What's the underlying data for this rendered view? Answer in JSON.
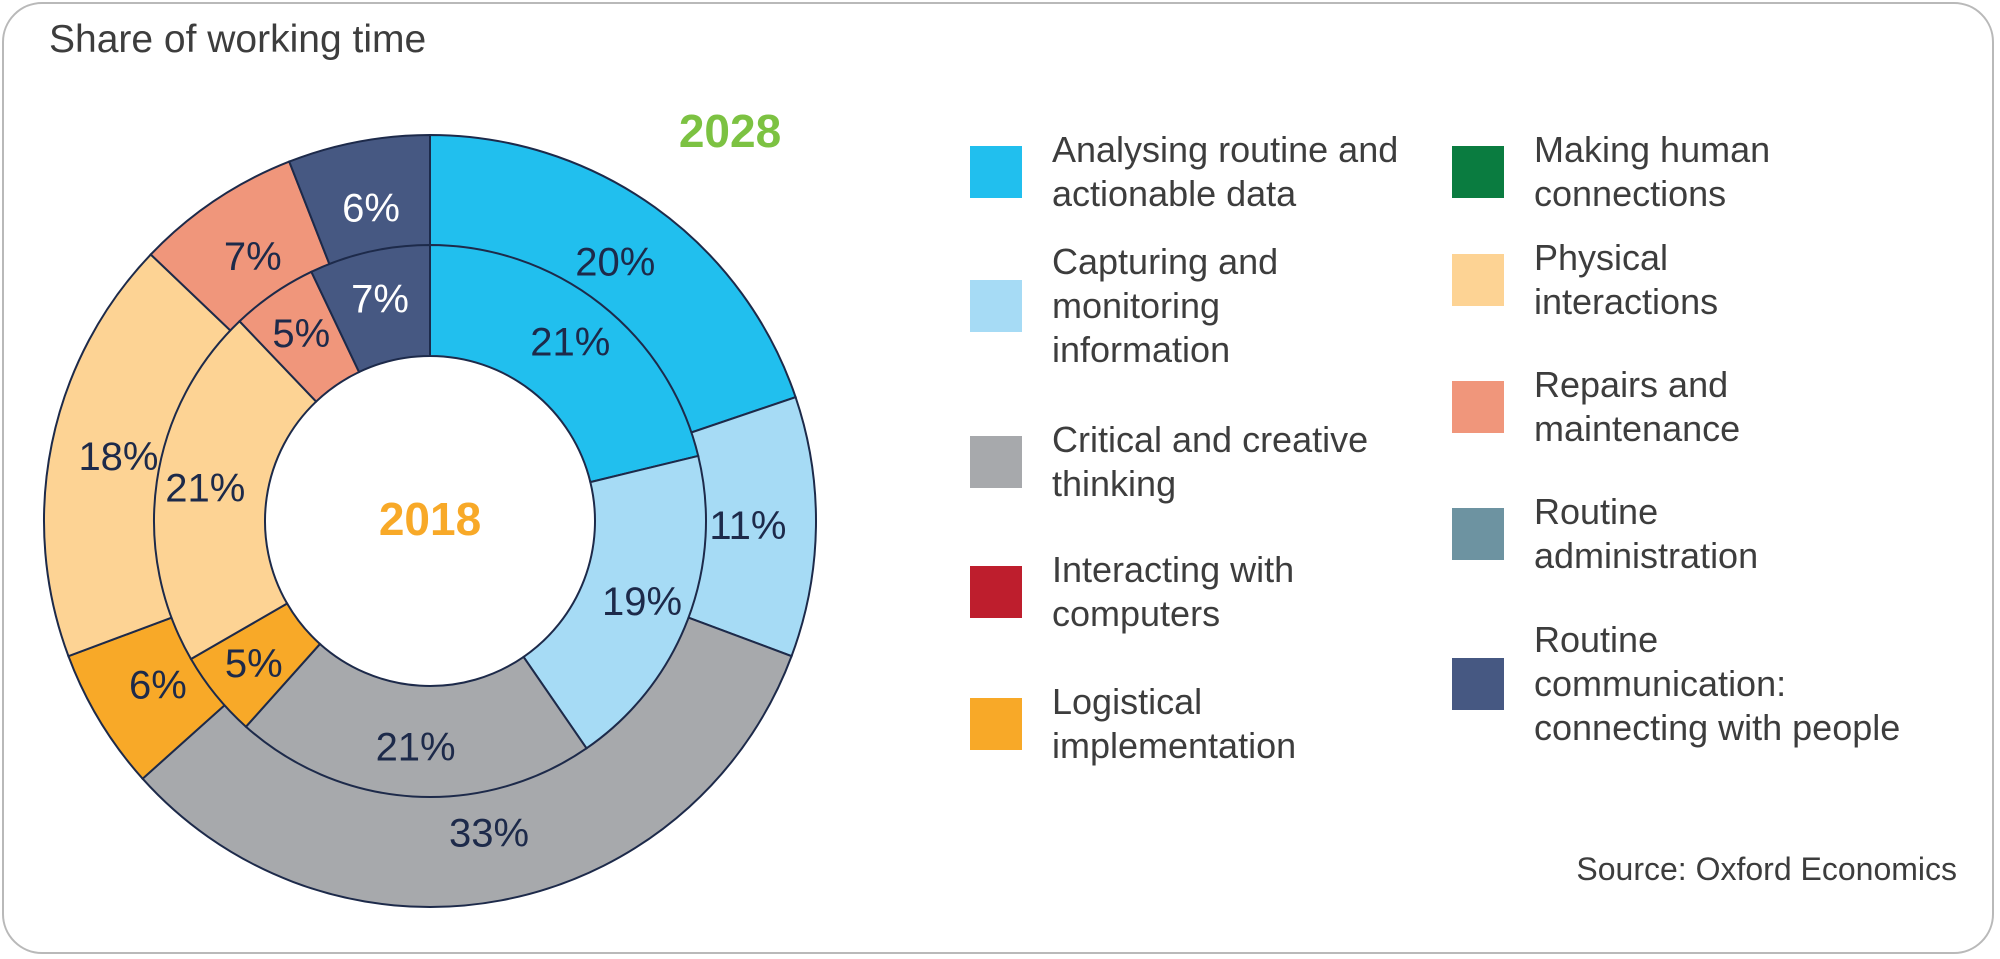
{
  "title": "Share of working time",
  "source": "Source: Oxford Economics",
  "legend": [
    {
      "label": "Analysing routine and\nactionable data",
      "color": "#21bfee"
    },
    {
      "label": "Capturing and\nmonitoring\ninformation",
      "color": "#a6dbf5"
    },
    {
      "label": "Critical and creative\nthinking",
      "color": "#a7a9ac"
    },
    {
      "label": "Interacting with\ncomputers",
      "color": "#be1e2d"
    },
    {
      "label": "Logistical\nimplementation",
      "color": "#f8a928"
    },
    {
      "label": "Making human\nconnections",
      "color": "#0a7c40"
    },
    {
      "label": "Physical\ninteractions",
      "color": "#fdd394"
    },
    {
      "label": "Repairs and\nmaintenance",
      "color": "#f0967b"
    },
    {
      "label": "Routine\nadministration",
      "color": "#6d93a1"
    },
    {
      "label": "Routine\ncommunication:\nconnecting with people",
      "color": "#465882"
    }
  ],
  "chart_data": {
    "type": "pie",
    "subtype": "double-donut",
    "title": "Share of working time",
    "rings": [
      {
        "name": "2028",
        "ring": "outer",
        "label_color": "#7cc242",
        "slices": [
          {
            "category": "Analysing routine and actionable data",
            "value": 20,
            "label": "20%",
            "color": "#21bfee"
          },
          {
            "category": "Capturing and monitoring information",
            "value": 11,
            "label": "11%",
            "color": "#a6dbf5"
          },
          {
            "category": "Critical and creative thinking",
            "value": 33,
            "label": "33%",
            "color": "#a7a9ac"
          },
          {
            "category": "Logistical implementation",
            "value": 6,
            "label": "6%",
            "color": "#f8a928"
          },
          {
            "category": "Physical interactions",
            "value": 18,
            "label": "18%",
            "color": "#fdd394"
          },
          {
            "category": "Repairs and maintenance",
            "value": 7,
            "label": "7%",
            "color": "#f0967b"
          },
          {
            "category": "Routine communication: connecting with people",
            "value": 6,
            "label": "6%",
            "color": "#465882"
          }
        ]
      },
      {
        "name": "2018",
        "ring": "inner",
        "label_color": "#f8a928",
        "slices": [
          {
            "category": "Analysing routine and actionable data",
            "value": 21,
            "label": "21%",
            "color": "#21bfee"
          },
          {
            "category": "Capturing and monitoring information",
            "value": 19,
            "label": "19%",
            "color": "#a6dbf5"
          },
          {
            "category": "Critical and creative thinking",
            "value": 21,
            "label": "21%",
            "color": "#a7a9ac"
          },
          {
            "category": "Logistical implementation",
            "value": 5,
            "label": "5%",
            "color": "#f8a928"
          },
          {
            "category": "Physical interactions",
            "value": 21,
            "label": "21%",
            "color": "#fdd394"
          },
          {
            "category": "Repairs and maintenance",
            "value": 5,
            "label": "5%",
            "color": "#f0967b"
          },
          {
            "category": "Routine communication: connecting with people",
            "value": 7,
            "label": "7%",
            "color": "#465882"
          }
        ]
      }
    ]
  }
}
